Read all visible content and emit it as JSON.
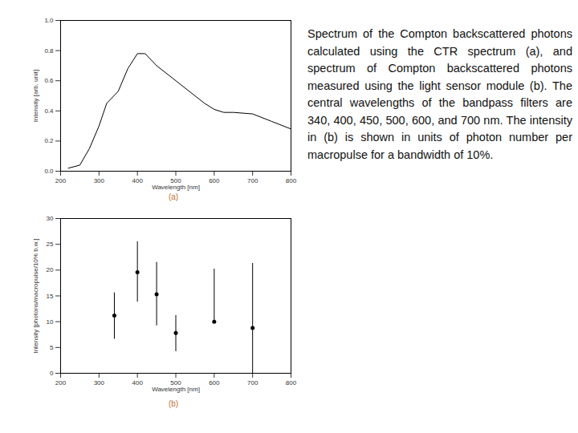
{
  "caption": "Spectrum of the Compton backscattered photons calculated using the CTR spectrum (a), and spectrum of Compton backscattered photons measured using the light sensor module (b). The central wavelengths of the bandpass filters are 340, 400, 450, 500, 600, and 700 nm. The intensity in (b) is shown in units of photon number per macropulse for a bandwidth of 10%.",
  "chart_data": [
    {
      "type": "line",
      "title": "(a)",
      "x_label": "Wavelength [nm]",
      "y_label": "Intensity [arb. unit]",
      "x": [
        220,
        250,
        275,
        300,
        320,
        350,
        375,
        400,
        420,
        450,
        500,
        550,
        575,
        600,
        625,
        650,
        700,
        750,
        800
      ],
      "values": [
        0.02,
        0.04,
        0.15,
        0.3,
        0.45,
        0.53,
        0.68,
        0.78,
        0.78,
        0.7,
        0.6,
        0.5,
        0.45,
        0.41,
        0.39,
        0.39,
        0.38,
        0.33,
        0.28
      ],
      "color": "#000000",
      "xlim": [
        200,
        800
      ],
      "xticks": [
        200,
        300,
        400,
        500,
        600,
        700,
        800
      ],
      "ylim": [
        0,
        1
      ],
      "yticks": [
        {
          "value": 0,
          "label": "0.0"
        },
        0.2,
        0.4,
        0.6,
        0.8,
        {
          "value": 1,
          "label": "1.0"
        }
      ],
      "grid": false
    },
    {
      "type": "scatter",
      "title": "(b)",
      "x_label": "Wavelength [nm]",
      "y_label": "Intensity [photons/macropulse/10% b.w.]",
      "x": [
        340,
        400,
        450,
        500,
        600,
        700
      ],
      "values": [
        11.2,
        19.6,
        15.3,
        7.8,
        10,
        8.8
      ],
      "error_low": [
        6.6,
        13.8,
        9.2,
        4.2,
        10,
        0
      ],
      "error_high": [
        15.6,
        25.5,
        21.5,
        11.2,
        20.2,
        21.3
      ],
      "color": "#000000",
      "marker": "circle",
      "xlim": [
        200,
        800
      ],
      "xticks": [
        200,
        300,
        400,
        500,
        600,
        700,
        800
      ],
      "ylim": [
        0,
        30
      ],
      "yticks": [
        0,
        5,
        10,
        15,
        20,
        25,
        30
      ],
      "grid": false
    }
  ]
}
